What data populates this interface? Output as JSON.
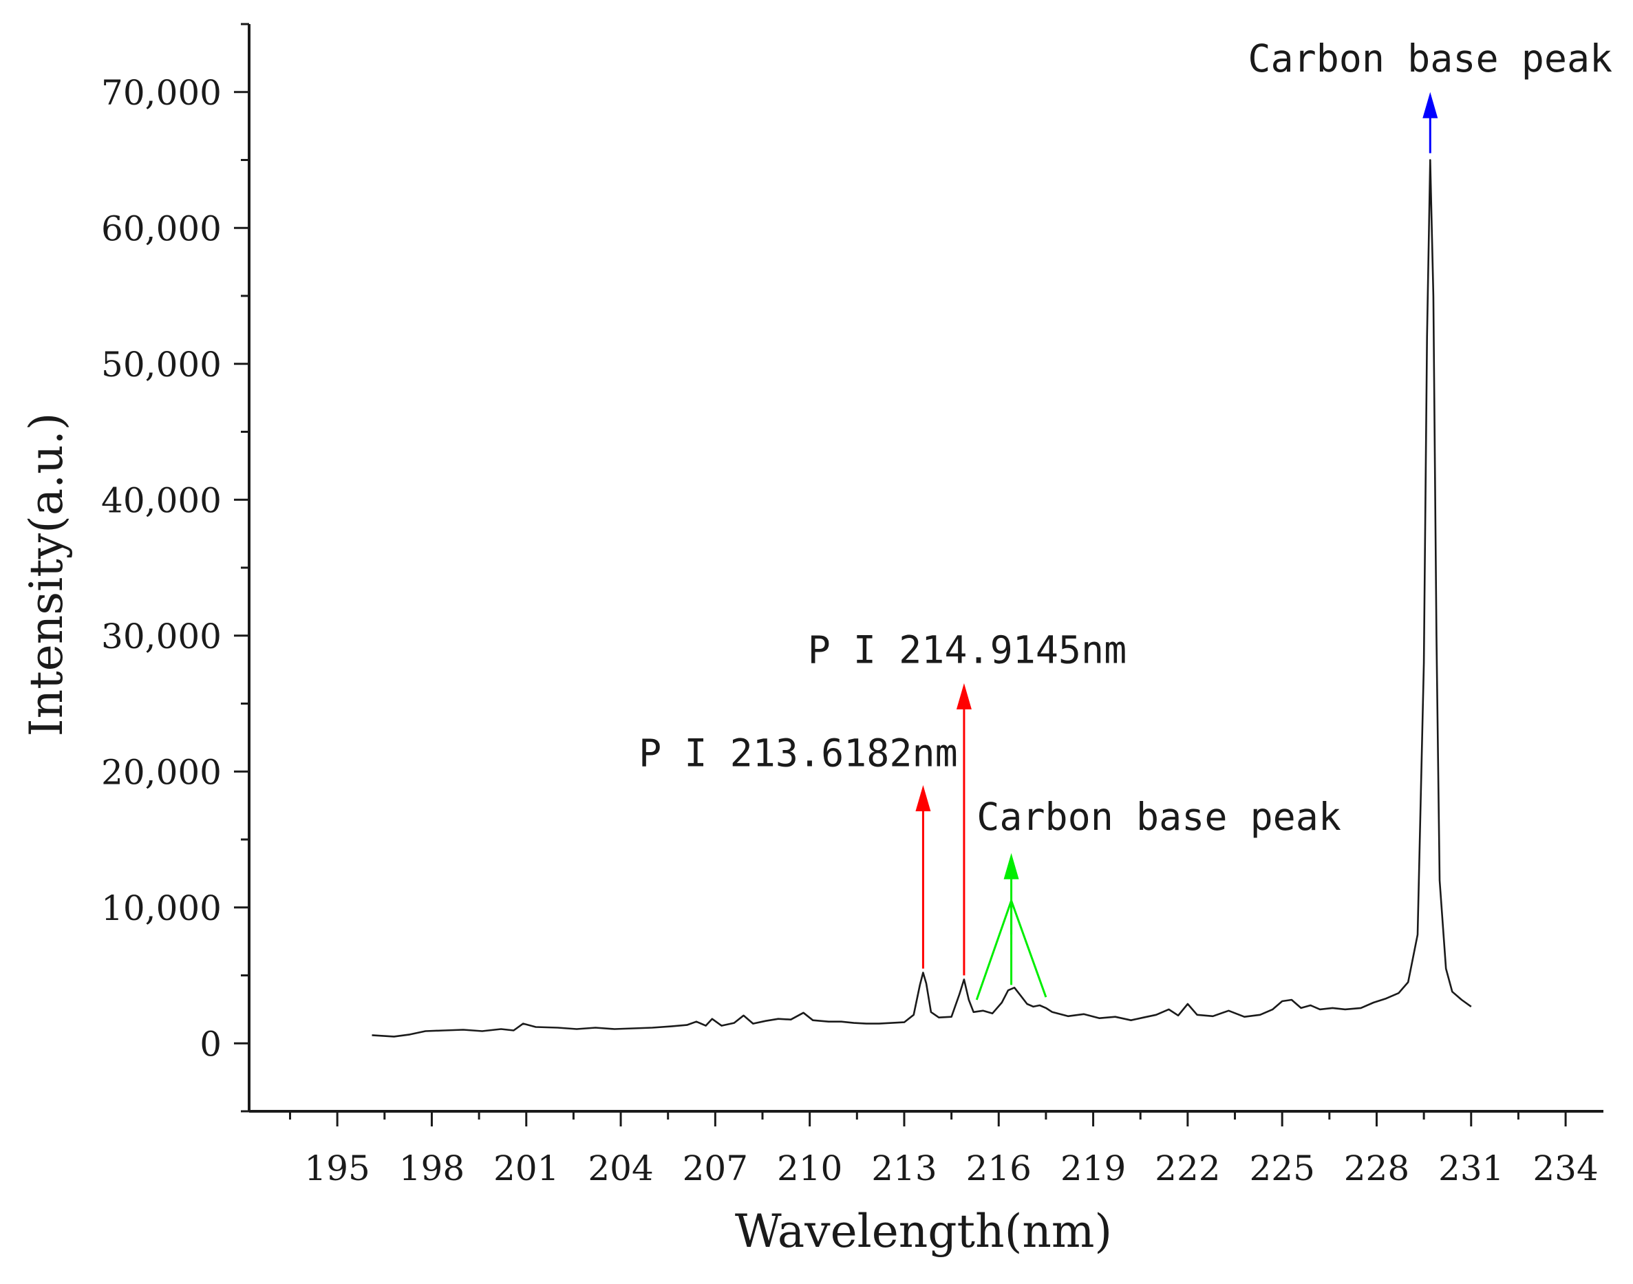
{
  "chart_data": {
    "type": "line",
    "title": "",
    "xlabel": "Wavelength(nm)",
    "ylabel": "Intensity(a.u.)",
    "xlim": [
      192.2,
      235.2
    ],
    "ylim": [
      -5000,
      75000
    ],
    "x_ticks": [
      195,
      198,
      201,
      204,
      207,
      210,
      213,
      216,
      219,
      222,
      225,
      228,
      231,
      234
    ],
    "x_tick_labels": [
      "195",
      "198",
      "201",
      "204",
      "207",
      "210",
      "213",
      "216",
      "219",
      "222",
      "225",
      "228",
      "231",
      "234"
    ],
    "y_ticks": [
      0,
      10000,
      20000,
      30000,
      40000,
      50000,
      60000,
      70000
    ],
    "y_tick_labels": [
      "0",
      "10,000",
      "20,000",
      "30,000",
      "40,000",
      "50,000",
      "60,000",
      "70,000"
    ],
    "grid": false,
    "series": [
      {
        "color": "#1a1a1a",
        "points": [
          [
            196.1,
            600
          ],
          [
            196.8,
            500
          ],
          [
            197.3,
            650
          ],
          [
            197.8,
            900
          ],
          [
            198.4,
            950
          ],
          [
            199.0,
            1000
          ],
          [
            199.6,
            900
          ],
          [
            200.2,
            1050
          ],
          [
            200.6,
            950
          ],
          [
            200.9,
            1450
          ],
          [
            201.3,
            1200
          ],
          [
            202.0,
            1150
          ],
          [
            202.6,
            1050
          ],
          [
            203.2,
            1150
          ],
          [
            203.8,
            1050
          ],
          [
            204.4,
            1100
          ],
          [
            205.0,
            1150
          ],
          [
            205.6,
            1250
          ],
          [
            206.1,
            1350
          ],
          [
            206.4,
            1600
          ],
          [
            206.7,
            1300
          ],
          [
            206.9,
            1800
          ],
          [
            207.2,
            1300
          ],
          [
            207.6,
            1500
          ],
          [
            207.9,
            2050
          ],
          [
            208.2,
            1450
          ],
          [
            208.6,
            1650
          ],
          [
            209.0,
            1800
          ],
          [
            209.4,
            1750
          ],
          [
            209.8,
            2250
          ],
          [
            210.1,
            1700
          ],
          [
            210.6,
            1600
          ],
          [
            211.0,
            1600
          ],
          [
            211.4,
            1500
          ],
          [
            211.8,
            1450
          ],
          [
            212.2,
            1450
          ],
          [
            212.6,
            1500
          ],
          [
            213.0,
            1550
          ],
          [
            213.3,
            2100
          ],
          [
            213.5,
            4300
          ],
          [
            213.6,
            5200
          ],
          [
            213.7,
            4400
          ],
          [
            213.85,
            2300
          ],
          [
            214.1,
            1900
          ],
          [
            214.5,
            1950
          ],
          [
            214.75,
            3600
          ],
          [
            214.9,
            4700
          ],
          [
            215.05,
            3200
          ],
          [
            215.2,
            2300
          ],
          [
            215.5,
            2400
          ],
          [
            215.8,
            2200
          ],
          [
            216.1,
            3000
          ],
          [
            216.3,
            3900
          ],
          [
            216.5,
            4100
          ],
          [
            216.7,
            3500
          ],
          [
            216.9,
            2900
          ],
          [
            217.1,
            2700
          ],
          [
            217.3,
            2800
          ],
          [
            217.5,
            2600
          ],
          [
            217.7,
            2300
          ],
          [
            218.2,
            2000
          ],
          [
            218.7,
            2150
          ],
          [
            219.2,
            1850
          ],
          [
            219.7,
            1950
          ],
          [
            220.2,
            1700
          ],
          [
            220.6,
            1900
          ],
          [
            221.0,
            2100
          ],
          [
            221.4,
            2500
          ],
          [
            221.7,
            2050
          ],
          [
            222.0,
            2900
          ],
          [
            222.3,
            2100
          ],
          [
            222.8,
            2000
          ],
          [
            223.3,
            2400
          ],
          [
            223.8,
            1950
          ],
          [
            224.3,
            2100
          ],
          [
            224.7,
            2500
          ],
          [
            225.0,
            3100
          ],
          [
            225.3,
            3200
          ],
          [
            225.6,
            2600
          ],
          [
            225.9,
            2800
          ],
          [
            226.2,
            2500
          ],
          [
            226.6,
            2600
          ],
          [
            227.0,
            2500
          ],
          [
            227.5,
            2600
          ],
          [
            227.9,
            3000
          ],
          [
            228.3,
            3300
          ],
          [
            228.7,
            3700
          ],
          [
            229.0,
            4500
          ],
          [
            229.3,
            8000
          ],
          [
            229.5,
            28000
          ],
          [
            229.6,
            52000
          ],
          [
            229.7,
            65000
          ],
          [
            229.8,
            55000
          ],
          [
            229.9,
            30000
          ],
          [
            230.0,
            12000
          ],
          [
            230.2,
            5500
          ],
          [
            230.4,
            3800
          ],
          [
            230.7,
            3200
          ],
          [
            231.0,
            2700
          ]
        ]
      }
    ],
    "annotations": [
      {
        "text": "Carbon base peak",
        "x": 229.7,
        "y_from": 65500,
        "y_to": 70000,
        "color": "#0000ff",
        "label_x": 229.7,
        "label_y": 71500,
        "anchor": "middle"
      },
      {
        "text": "P I 214.9145nm",
        "x": 214.9,
        "y_from": 5000,
        "y_to": 26500,
        "color": "#ff0000",
        "label_x": 215.0,
        "label_y": 28000,
        "anchor": "middle"
      },
      {
        "text": "P I 213.6182nm",
        "x": 213.6,
        "y_from": 5500,
        "y_to": 19000,
        "color": "#ff0000",
        "label_x": 214.7,
        "label_y": 20400,
        "anchor": "end"
      },
      {
        "text": "Carbon base peak",
        "x": 216.4,
        "y_from": 8000,
        "y_to": 14000,
        "color": "#00ee00",
        "label_x": 215.3,
        "label_y": 15700,
        "anchor": "start",
        "branches": [
          [
            215.3,
            3200
          ],
          [
            216.4,
            4300
          ],
          [
            217.5,
            3400
          ]
        ]
      }
    ]
  }
}
